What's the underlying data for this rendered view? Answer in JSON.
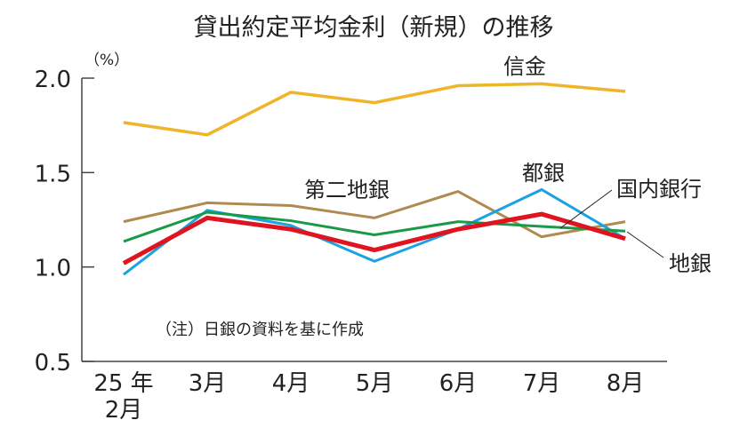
{
  "chart_data": {
    "type": "line",
    "title": "貸出約定平均金利（新規）の推移",
    "ylabel": "（%）",
    "xlabel": "",
    "categories": [
      "25年\n2月",
      "3月",
      "4月",
      "5月",
      "6月",
      "7月",
      "8月"
    ],
    "category_lines": [
      [
        "25 年",
        "2月"
      ],
      [
        "3月"
      ],
      [
        "4月"
      ],
      [
        "5月"
      ],
      [
        "6月"
      ],
      [
        "7月"
      ],
      [
        "8月"
      ]
    ],
    "ylim": [
      0.5,
      2.0
    ],
    "yticks": [
      "0.5",
      "1.0",
      "1.5",
      "2.0"
    ],
    "grid": false,
    "note": "（注）日銀の資料を基に作成",
    "series": [
      {
        "name": "信金",
        "color": "#f0b429",
        "width": 3.5,
        "values": [
          1.765,
          1.7,
          1.925,
          1.87,
          1.96,
          1.97,
          1.93
        ]
      },
      {
        "name": "第二地銀",
        "color": "#b08a50",
        "width": 3,
        "values": [
          1.24,
          1.34,
          1.325,
          1.26,
          1.4,
          1.16,
          1.24
        ]
      },
      {
        "name": "都銀",
        "color": "#1aa3e0",
        "width": 3,
        "values": [
          0.96,
          1.3,
          1.22,
          1.03,
          1.2,
          1.41,
          1.15
        ]
      },
      {
        "name": "地銀",
        "color": "#1a9a48",
        "width": 3,
        "values": [
          1.135,
          1.29,
          1.245,
          1.17,
          1.24,
          1.215,
          1.19
        ]
      },
      {
        "name": "国内銀行",
        "color": "#e0141e",
        "width": 5,
        "values": [
          1.02,
          1.26,
          1.2,
          1.09,
          1.2,
          1.28,
          1.15
        ]
      }
    ]
  }
}
